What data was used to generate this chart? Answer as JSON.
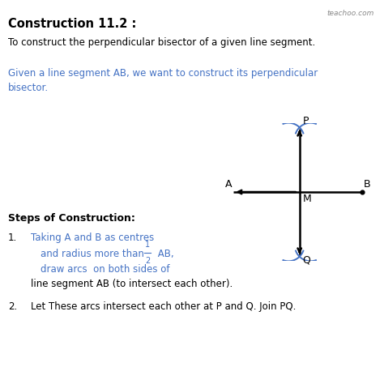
{
  "bg_color": "#ffffff",
  "title_text": "Construction 11.2 :",
  "subtitle_text": "To construct the perpendicular bisector of a given line segment.",
  "blue_line1": "Given a line segment AB, we want to construct its perpendicular",
  "blue_line2": "bisector.",
  "steps_title": "Steps of Construction:",
  "step1_num": "1.",
  "step1_line1": "Taking A and B as centres",
  "step1_line2_pre": "and radius more than ",
  "step1_frac_num": "1",
  "step1_frac_den": "2",
  "step1_line2_post": " AB,",
  "step1_line3": "draw arcs  on both sides of",
  "step1_line4": "line segment AB (to intersect each other).",
  "step2_num": "2.",
  "step2_text": "Let These arcs intersect each other at P and Q. Join PQ.",
  "watermark": "teachoo.com",
  "black_color": "#000000",
  "blue_color": "#4472C4",
  "arc_color": "#4472C4",
  "line_color": "#000000",
  "gray_color": "#888888"
}
